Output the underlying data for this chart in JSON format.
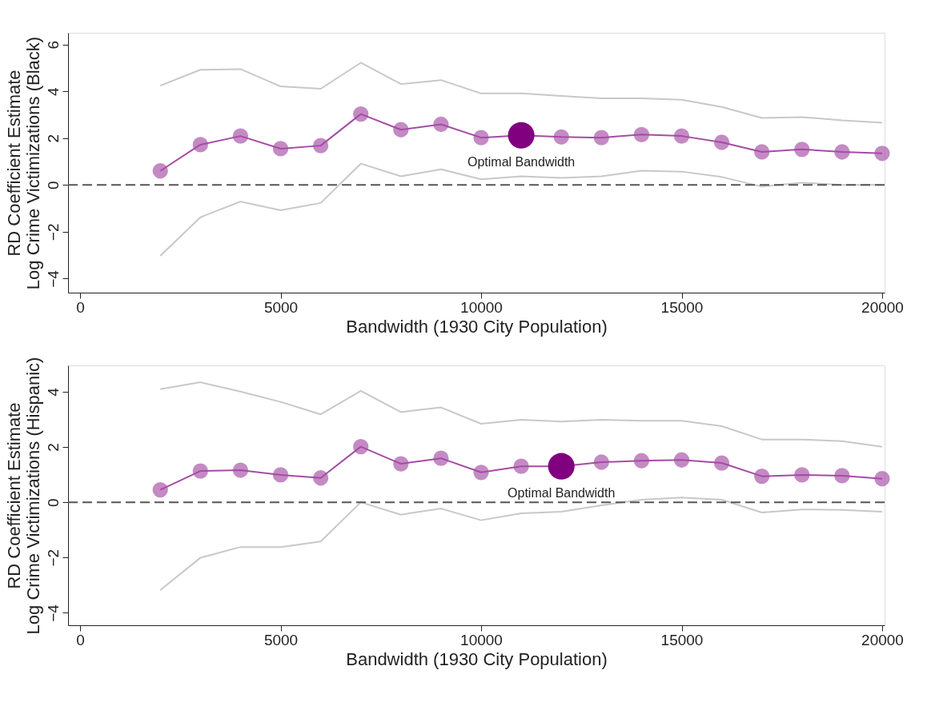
{
  "chart_data": [
    {
      "type": "line",
      "xlabel": "Bandwidth (1930 City Population)",
      "ylabel": "RD Coefficient Estimate\nLog Crime Victimizations (Black)",
      "x": [
        2000,
        3000,
        4000,
        5000,
        6000,
        7000,
        8000,
        9000,
        10000,
        11000,
        12000,
        13000,
        14000,
        15000,
        16000,
        17000,
        18000,
        19000,
        20000
      ],
      "series": [
        {
          "type": "line",
          "color": "#c8c8c8",
          "marker": "none",
          "values": [
            4.24,
            4.92,
            4.95,
            4.21,
            4.11,
            5.22,
            4.31,
            4.48,
            3.91,
            3.91,
            3.8,
            3.7,
            3.7,
            3.64,
            3.33,
            2.86,
            2.9,
            2.76,
            2.66
          ]
        },
        {
          "type": "line",
          "color": "#c8c8c8",
          "marker": "none",
          "values": [
            -3.03,
            -1.38,
            -0.71,
            -1.08,
            -0.77,
            0.91,
            0.37,
            0.67,
            0.24,
            0.37,
            0.3,
            0.37,
            0.61,
            0.57,
            0.34,
            -0.07,
            0.1,
            0.0,
            0.0
          ]
        },
        {
          "color": "#a54ca5",
          "marker": "circle",
          "values": [
            0.6,
            1.72,
            2.09,
            1.55,
            1.68,
            3.03,
            2.36,
            2.59,
            2.02,
            2.12,
            2.05,
            2.02,
            2.15,
            2.09,
            1.82,
            1.41,
            1.52,
            1.41,
            1.35
          ]
        },
        {
          "type": "scatter",
          "color": "#800080",
          "marker": "circle",
          "x": [
            11000
          ],
          "values": [
            2.12
          ]
        }
      ],
      "annotations": [
        {
          "text": "Optimal Bandwidth",
          "x": 11000,
          "y": 2.12
        }
      ],
      "ref_lines": [
        {
          "axis": "y",
          "value": 0,
          "color": "#555555",
          "line_style": "dashed"
        }
      ],
      "xlim": [
        -300,
        20060
      ],
      "xticks": [
        0,
        5000,
        10000,
        15000,
        20000
      ],
      "ylim": [
        -4.6,
        6.5
      ],
      "yticks": [
        -4,
        -2,
        0,
        2,
        4,
        6
      ],
      "grid": false,
      "legend": false
    },
    {
      "type": "line",
      "xlabel": "Bandwidth (1930 City Population)",
      "ylabel": "RD Coefficient Estimate\nLog Crime Victimizations (Hispanic)",
      "x": [
        2000,
        3000,
        4000,
        5000,
        6000,
        7000,
        8000,
        9000,
        10000,
        11000,
        12000,
        13000,
        14000,
        15000,
        16000,
        17000,
        18000,
        19000,
        20000
      ],
      "series": [
        {
          "type": "line",
          "color": "#c8c8c8",
          "marker": "none",
          "values": [
            4.09,
            4.34,
            4.0,
            3.63,
            3.18,
            4.03,
            3.26,
            3.43,
            2.84,
            2.98,
            2.92,
            2.98,
            2.95,
            2.95,
            2.75,
            2.27,
            2.27,
            2.21,
            2.01
          ]
        },
        {
          "type": "line",
          "color": "#c8c8c8",
          "marker": "none",
          "values": [
            -3.18,
            -2.01,
            -1.62,
            -1.62,
            -1.42,
            0.0,
            -0.45,
            -0.23,
            -0.65,
            -0.4,
            -0.34,
            -0.11,
            0.09,
            0.17,
            0.09,
            -0.37,
            -0.26,
            -0.28,
            -0.34
          ]
        },
        {
          "color": "#a54ca5",
          "marker": "circle",
          "values": [
            0.45,
            1.13,
            1.16,
            0.99,
            0.88,
            2.01,
            1.39,
            1.59,
            1.08,
            1.3,
            1.3,
            1.45,
            1.5,
            1.53,
            1.42,
            0.94,
            0.99,
            0.96,
            0.85
          ]
        },
        {
          "type": "scatter",
          "color": "#800080",
          "marker": "circle",
          "x": [
            12000
          ],
          "values": [
            1.3
          ]
        }
      ],
      "annotations": [
        {
          "text": "Optimal Bandwidth",
          "x": 12000,
          "y": 1.3
        }
      ],
      "ref_lines": [
        {
          "axis": "y",
          "value": 0,
          "color": "#555555",
          "line_style": "dashed"
        }
      ],
      "xlim": [
        -300,
        20060
      ],
      "xticks": [
        0,
        5000,
        10000,
        15000,
        20000
      ],
      "ylim": [
        -4.45,
        4.95
      ],
      "yticks": [
        -4,
        -2,
        0,
        2,
        4
      ],
      "grid": false,
      "legend": false
    }
  ]
}
